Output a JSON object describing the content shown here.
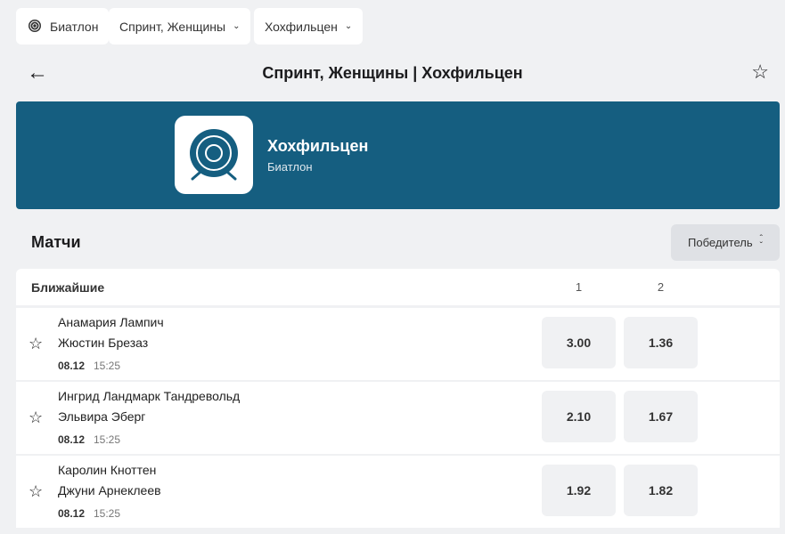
{
  "filters": [
    {
      "label": "Биатлон",
      "icon": "target-icon"
    },
    {
      "label": "Спринт, Женщины"
    },
    {
      "label": "Хохфильцен"
    }
  ],
  "header": {
    "title": "Спринт, Женщины | Хохфильцен",
    "back_icon": "←",
    "fav_icon": "☆"
  },
  "banner": {
    "name": "Хохфильцен",
    "sport": "Биатлон",
    "color": "#155e80"
  },
  "section": {
    "title": "Матчи",
    "market": "Победитель"
  },
  "table": {
    "group": "Ближайшие",
    "cols": [
      "1",
      "2"
    ],
    "rows": [
      {
        "p1": "Анамария Лампич",
        "p2": "Жюстин Брезаз",
        "date": "08.12",
        "time": "15:25",
        "odds": [
          "3.00",
          "1.36"
        ]
      },
      {
        "p1": "Ингрид Ландмарк Тандреволь­д",
        "p2": "Эльвира Эберг",
        "date": "08.12",
        "time": "15:25",
        "odds": [
          "2.10",
          "1.67"
        ]
      },
      {
        "p1": "Каролин Кноттен",
        "p2": "Джуни Арнеклеев",
        "date": "08.12",
        "time": "15:25",
        "odds": [
          "1.92",
          "1.82"
        ]
      }
    ]
  }
}
